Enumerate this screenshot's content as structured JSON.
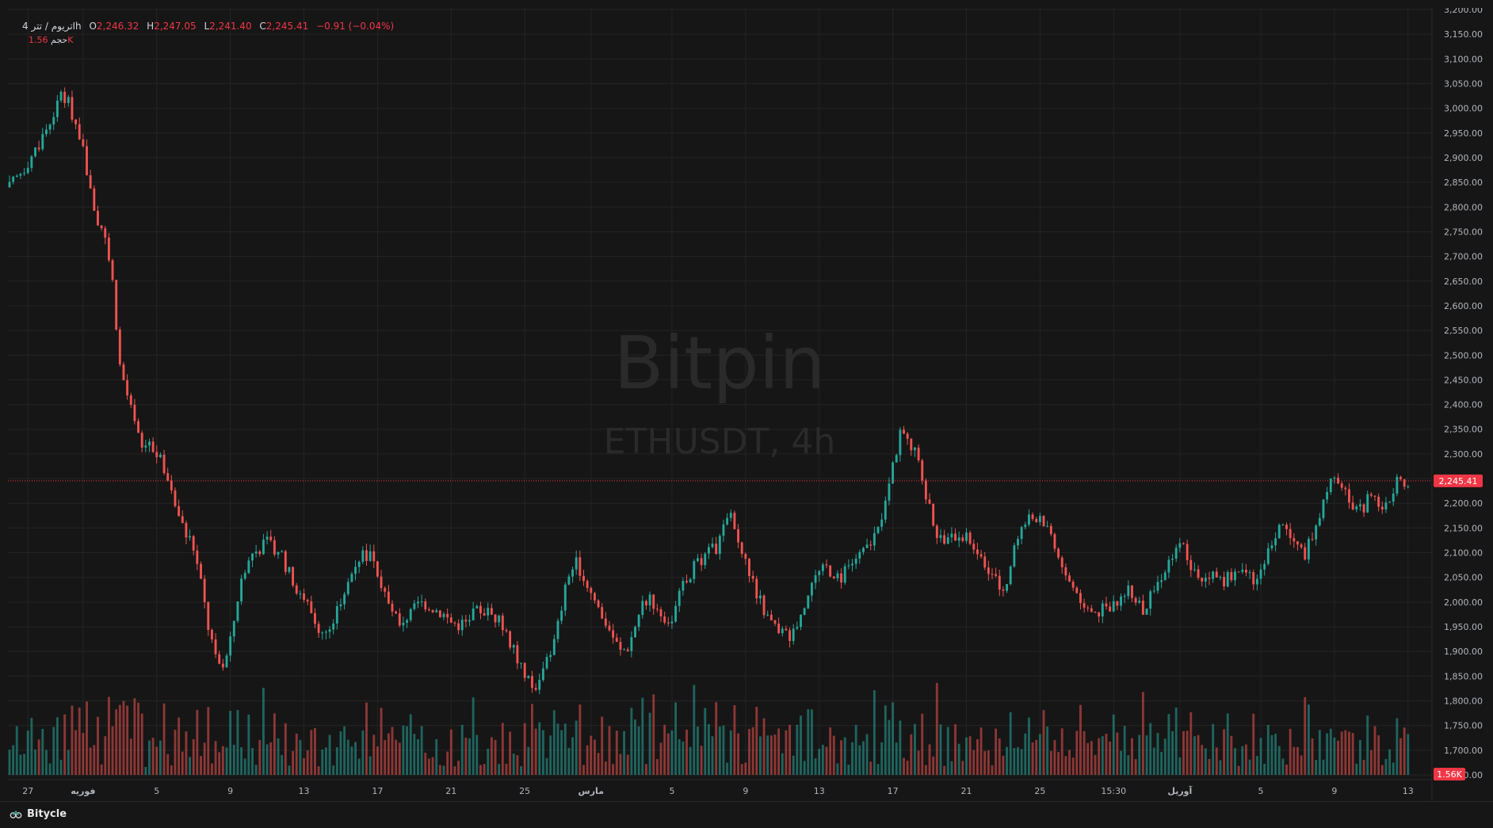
{
  "legend": {
    "symbol": "اتریوم / تتر",
    "timeframe": "4h",
    "open_label": "O",
    "open": "2,246.32",
    "high_label": "H",
    "high": "2,247.05",
    "low_label": "L",
    "low": "2,241.40",
    "close_label": "C",
    "close": "2,245.41",
    "change": "−0.91 (−0.04%)"
  },
  "volume_legend": {
    "label": "حجم",
    "value": "1.56K"
  },
  "watermark": {
    "brand": "Bitpin",
    "pair": "ETHUSDT, 4h"
  },
  "footer": {
    "brand_icon": "bitycle-logo-icon",
    "brand": "Bitycle"
  },
  "colors": {
    "up": "#26a69a",
    "down": "#ef5350",
    "price_line": "#f23645",
    "background": "#161616",
    "grid": "#242424"
  },
  "chart_data": {
    "type": "candlestick",
    "symbol": "ETHUSDT",
    "interval": "4h",
    "current_price": 2245.41,
    "current_price_label": "2,245.41",
    "volume_last_label": "1.56K",
    "ylim": [
      1650,
      3200
    ],
    "y_ticks": [
      "3,200.00",
      "3,150.00",
      "3,100.00",
      "3,050.00",
      "3,000.00",
      "2,950.00",
      "2,900.00",
      "2,850.00",
      "2,800.00",
      "2,750.00",
      "2,700.00",
      "2,650.00",
      "2,600.00",
      "2,550.00",
      "2,500.00",
      "2,450.00",
      "2,400.00",
      "2,350.00",
      "2,300.00",
      "2,250.00",
      "2,200.00",
      "2,150.00",
      "2,100.00",
      "2,050.00",
      "2,000.00",
      "1,950.00",
      "1,900.00",
      "1,850.00",
      "1,800.00",
      "1,750.00",
      "1,700.00",
      "1,650.00"
    ],
    "x_ticks": [
      {
        "label": "27",
        "bold": false,
        "t": 5
      },
      {
        "label": "فوریه",
        "bold": true,
        "t": 20
      },
      {
        "label": "5",
        "bold": false,
        "t": 40
      },
      {
        "label": "9",
        "bold": false,
        "t": 60
      },
      {
        "label": "13",
        "bold": false,
        "t": 80
      },
      {
        "label": "17",
        "bold": false,
        "t": 100
      },
      {
        "label": "21",
        "bold": false,
        "t": 120
      },
      {
        "label": "25",
        "bold": false,
        "t": 140
      },
      {
        "label": "مارس",
        "bold": true,
        "t": 158
      },
      {
        "label": "5",
        "bold": false,
        "t": 180
      },
      {
        "label": "9",
        "bold": false,
        "t": 200
      },
      {
        "label": "13",
        "bold": false,
        "t": 220
      },
      {
        "label": "17",
        "bold": false,
        "t": 240
      },
      {
        "label": "21",
        "bold": false,
        "t": 260
      },
      {
        "label": "25",
        "bold": false,
        "t": 280
      },
      {
        "label": "15:30",
        "bold": false,
        "t": 300
      },
      {
        "label": "آوریل",
        "bold": true,
        "t": 318
      },
      {
        "label": "5",
        "bold": false,
        "t": 340
      },
      {
        "label": "9",
        "bold": false,
        "t": 360
      },
      {
        "label": "13",
        "bold": false,
        "t": 380
      }
    ],
    "x_range": [
      0,
      385
    ],
    "close_path": [
      [
        0,
        2840
      ],
      [
        4,
        2880
      ],
      [
        8,
        2930
      ],
      [
        10,
        2960
      ],
      [
        12,
        2990
      ],
      [
        14,
        3020
      ],
      [
        16,
        3010
      ],
      [
        18,
        2970
      ],
      [
        20,
        2920
      ],
      [
        22,
        2830
      ],
      [
        24,
        2770
      ],
      [
        26,
        2740
      ],
      [
        28,
        2650
      ],
      [
        30,
        2480
      ],
      [
        32,
        2420
      ],
      [
        34,
        2360
      ],
      [
        36,
        2310
      ],
      [
        38,
        2330
      ],
      [
        40,
        2300
      ],
      [
        42,
        2270
      ],
      [
        44,
        2230
      ],
      [
        46,
        2180
      ],
      [
        48,
        2140
      ],
      [
        50,
        2110
      ],
      [
        52,
        2040
      ],
      [
        54,
        1950
      ],
      [
        56,
        1890
      ],
      [
        58,
        1860
      ],
      [
        60,
        1920
      ],
      [
        62,
        2010
      ],
      [
        64,
        2070
      ],
      [
        66,
        2100
      ],
      [
        68,
        2110
      ],
      [
        70,
        2120
      ],
      [
        72,
        2110
      ],
      [
        74,
        2090
      ],
      [
        76,
        2060
      ],
      [
        78,
        2030
      ],
      [
        80,
        2010
      ],
      [
        82,
        1980
      ],
      [
        84,
        1950
      ],
      [
        86,
        1935
      ],
      [
        88,
        1960
      ],
      [
        90,
        2000
      ],
      [
        92,
        2040
      ],
      [
        94,
        2080
      ],
      [
        96,
        2100
      ],
      [
        98,
        2090
      ],
      [
        100,
        2050
      ],
      [
        102,
        2010
      ],
      [
        104,
        1975
      ],
      [
        106,
        1960
      ],
      [
        108,
        1970
      ],
      [
        110,
        1990
      ],
      [
        112,
        2000
      ],
      [
        114,
        1995
      ],
      [
        116,
        1985
      ],
      [
        118,
        1975
      ],
      [
        120,
        1960
      ],
      [
        122,
        1955
      ],
      [
        124,
        1960
      ],
      [
        126,
        1975
      ],
      [
        128,
        1985
      ],
      [
        130,
        1980
      ],
      [
        132,
        1970
      ],
      [
        134,
        1950
      ],
      [
        136,
        1920
      ],
      [
        138,
        1880
      ],
      [
        140,
        1850
      ],
      [
        142,
        1830
      ],
      [
        144,
        1840
      ],
      [
        146,
        1880
      ],
      [
        148,
        1920
      ],
      [
        150,
        1990
      ],
      [
        152,
        2060
      ],
      [
        154,
        2080
      ],
      [
        156,
        2050
      ],
      [
        158,
        2020
      ],
      [
        160,
        1990
      ],
      [
        162,
        1960
      ],
      [
        164,
        1930
      ],
      [
        166,
        1900
      ],
      [
        168,
        1910
      ],
      [
        170,
        1950
      ],
      [
        172,
        2000
      ],
      [
        174,
        2010
      ],
      [
        176,
        1990
      ],
      [
        178,
        1970
      ],
      [
        180,
        1960
      ],
      [
        182,
        2010
      ],
      [
        184,
        2050
      ],
      [
        186,
        2070
      ],
      [
        188,
        2080
      ],
      [
        190,
        2100
      ],
      [
        192,
        2110
      ],
      [
        194,
        2150
      ],
      [
        196,
        2180
      ],
      [
        198,
        2120
      ],
      [
        200,
        2080
      ],
      [
        202,
        2040
      ],
      [
        204,
        2000
      ],
      [
        206,
        1970
      ],
      [
        208,
        1950
      ],
      [
        210,
        1940
      ],
      [
        212,
        1930
      ],
      [
        214,
        1960
      ],
      [
        216,
        2000
      ],
      [
        218,
        2040
      ],
      [
        220,
        2060
      ],
      [
        222,
        2070
      ],
      [
        224,
        2060
      ],
      [
        226,
        2050
      ],
      [
        228,
        2070
      ],
      [
        230,
        2090
      ],
      [
        232,
        2100
      ],
      [
        234,
        2120
      ],
      [
        236,
        2150
      ],
      [
        238,
        2200
      ],
      [
        240,
        2280
      ],
      [
        242,
        2340
      ],
      [
        244,
        2330
      ],
      [
        246,
        2300
      ],
      [
        248,
        2250
      ],
      [
        250,
        2190
      ],
      [
        252,
        2140
      ],
      [
        254,
        2120
      ],
      [
        256,
        2130
      ],
      [
        258,
        2140
      ],
      [
        260,
        2130
      ],
      [
        262,
        2120
      ],
      [
        264,
        2090
      ],
      [
        266,
        2060
      ],
      [
        268,
        2040
      ],
      [
        270,
        2020
      ],
      [
        272,
        2080
      ],
      [
        274,
        2140
      ],
      [
        276,
        2160
      ],
      [
        278,
        2170
      ],
      [
        280,
        2180
      ],
      [
        282,
        2150
      ],
      [
        284,
        2120
      ],
      [
        286,
        2070
      ],
      [
        288,
        2040
      ],
      [
        290,
        2020
      ],
      [
        292,
        2000
      ],
      [
        294,
        1990
      ],
      [
        296,
        1980
      ],
      [
        298,
        1990
      ],
      [
        300,
        2000
      ],
      [
        302,
        2010
      ],
      [
        304,
        2020
      ],
      [
        306,
        2000
      ],
      [
        308,
        1980
      ],
      [
        310,
        2010
      ],
      [
        312,
        2040
      ],
      [
        314,
        2070
      ],
      [
        316,
        2100
      ],
      [
        318,
        2120
      ],
      [
        320,
        2090
      ],
      [
        322,
        2060
      ],
      [
        324,
        2050
      ],
      [
        326,
        2060
      ],
      [
        328,
        2050
      ],
      [
        330,
        2045
      ],
      [
        332,
        2050
      ],
      [
        334,
        2060
      ],
      [
        336,
        2055
      ],
      [
        338,
        2040
      ],
      [
        340,
        2060
      ],
      [
        342,
        2100
      ],
      [
        344,
        2140
      ],
      [
        346,
        2160
      ],
      [
        348,
        2130
      ],
      [
        350,
        2110
      ],
      [
        352,
        2100
      ],
      [
        354,
        2140
      ],
      [
        356,
        2180
      ],
      [
        358,
        2230
      ],
      [
        360,
        2250
      ],
      [
        362,
        2240
      ],
      [
        364,
        2200
      ],
      [
        366,
        2180
      ],
      [
        368,
        2190
      ],
      [
        370,
        2220
      ],
      [
        372,
        2200
      ],
      [
        374,
        2190
      ],
      [
        376,
        2230
      ],
      [
        378,
        2250
      ],
      [
        380,
        2245
      ]
    ],
    "candle_count": 381
  }
}
